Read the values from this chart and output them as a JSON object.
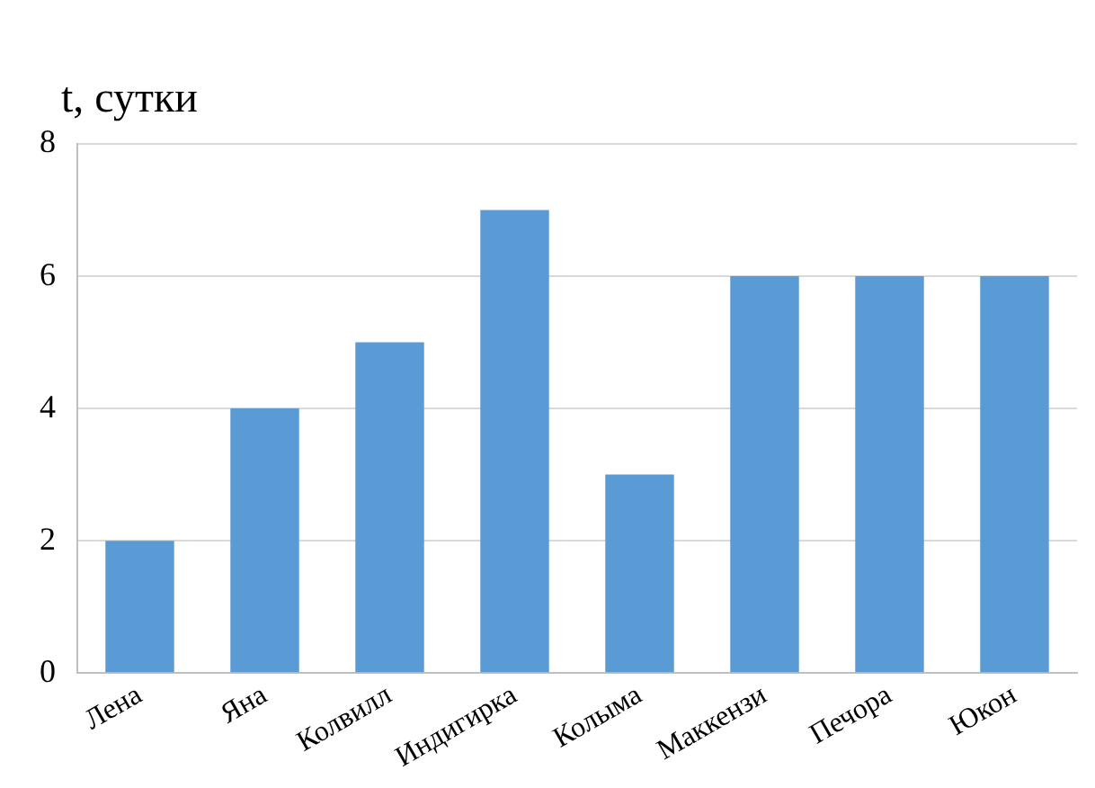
{
  "chart_data": {
    "type": "bar",
    "ylabel": "t, сутки",
    "categories": [
      "Лена",
      "Яна",
      "Колвилл",
      "Индигирка",
      "Колыма",
      "Маккензи",
      "Печора",
      "Юкон"
    ],
    "values": [
      2,
      4,
      5,
      7,
      3,
      6,
      6,
      6
    ],
    "color": "#5b9bd5",
    "ylim": [
      0,
      8
    ],
    "yticks": [
      0,
      2,
      4,
      6,
      8
    ],
    "grid": "y"
  }
}
